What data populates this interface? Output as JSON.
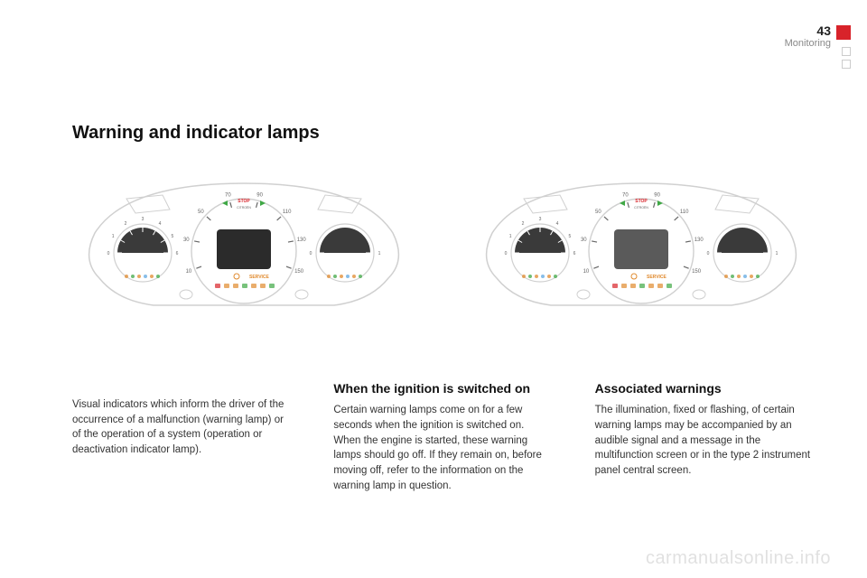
{
  "header": {
    "page_number": "43",
    "section": "Monitoring"
  },
  "title": "Warning and indicator lamps",
  "columns": {
    "intro": "Visual indicators which inform the driver of the occurrence of a malfunction (warning lamp) or of the operation of a system (operation or deactivation indicator lamp).",
    "ignition": {
      "heading": "When the ignition is switched on",
      "body": "Certain warning lamps come on for a few seconds when the ignition is switched on. When the engine is started, these warning lamps should go off.\nIf they remain on, before moving off, refer to the information on the warning lamp in question."
    },
    "associated": {
      "heading": "Associated warnings",
      "body": "The illumination, fixed or flashing, of certain warning lamps may be accompanied by an audible signal and a message in the multifunction screen or in the type 2 instrument panel central screen."
    }
  },
  "watermark": "carmanualsonline.info",
  "clusters": {
    "speedo_ticks": [
      "10",
      "30",
      "50",
      "70",
      "90",
      "110",
      "130",
      "150"
    ],
    "rpm_ticks": [
      "0",
      "1",
      "2",
      "3",
      "4",
      "5",
      "6"
    ],
    "fuel_ticks": [
      "0",
      "1"
    ],
    "stop_label": "STOP",
    "service_label": "SERVICE",
    "brand": "CITROËN",
    "colors": {
      "outline": "#d0d0d0",
      "dark_fill": "#3a3a3a",
      "tick": "#666666",
      "green": "#3fa845",
      "orange": "#e08a2e",
      "red": "#d8232a",
      "blue": "#5fa8e0",
      "screen_a": "#2b2b2b",
      "screen_b": "#5a5a5a"
    }
  }
}
